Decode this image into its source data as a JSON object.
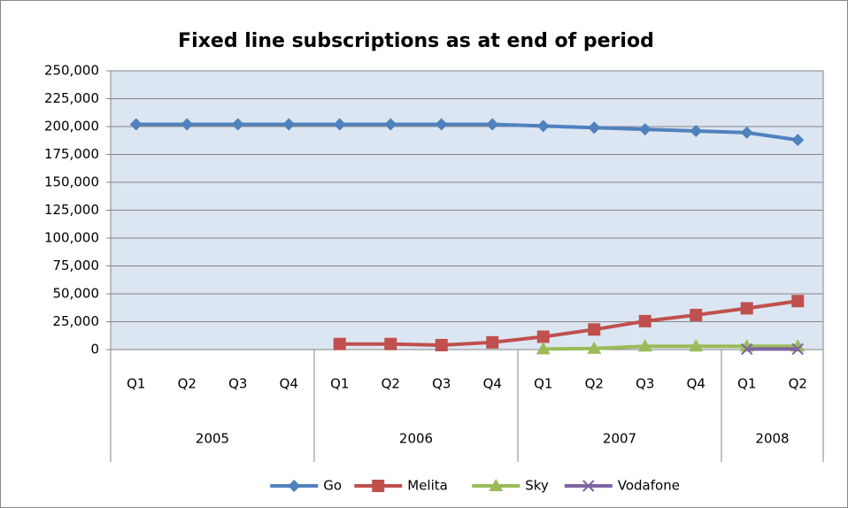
{
  "chart_data": {
    "type": "line",
    "title": "Fixed line subscriptions as at end of period",
    "category_groups": [
      {
        "label": "2005",
        "categories": [
          "Q1",
          "Q2",
          "Q3",
          "Q4"
        ]
      },
      {
        "label": "2006",
        "categories": [
          "Q1",
          "Q2",
          "Q3",
          "Q4"
        ]
      },
      {
        "label": "2007",
        "categories": [
          "Q1",
          "Q2",
          "Q3",
          "Q4"
        ]
      },
      {
        "label": "2008",
        "categories": [
          "Q1",
          "Q2"
        ]
      }
    ],
    "series": [
      {
        "name": "Go",
        "color": "#4f81bd",
        "marker": "diamond",
        "values": [
          202000,
          202000,
          202000,
          202000,
          202000,
          202000,
          202000,
          202000,
          200500,
          199000,
          197500,
          196000,
          194500,
          188000
        ]
      },
      {
        "name": "Melita",
        "color": "#c0504d",
        "marker": "square",
        "values": [
          null,
          null,
          null,
          null,
          5000,
          5000,
          4000,
          6500,
          11500,
          18000,
          25500,
          31000,
          37000,
          43500
        ]
      },
      {
        "name": "Sky",
        "color": "#9bbb59",
        "marker": "triangle",
        "values": [
          null,
          null,
          null,
          null,
          null,
          null,
          null,
          null,
          500,
          1000,
          3000,
          3000,
          3000,
          3000
        ]
      },
      {
        "name": "Vodafone",
        "color": "#8064a2",
        "marker": "x",
        "values": [
          null,
          null,
          null,
          null,
          null,
          null,
          null,
          null,
          null,
          null,
          null,
          null,
          500,
          500
        ]
      }
    ],
    "ylim": [
      0,
      250000
    ],
    "yticks": [
      0,
      {
        "value": 25000,
        "label": "25,000"
      },
      {
        "value": 50000,
        "label": "50,000"
      },
      {
        "value": 75000,
        "label": "75,000"
      },
      {
        "value": 100000,
        "label": "100,000"
      },
      {
        "value": 125000,
        "label": "125,000"
      },
      {
        "value": 150000,
        "label": "150,000"
      },
      {
        "value": 175000,
        "label": "175,000"
      },
      {
        "value": 200000,
        "label": "200,000"
      },
      {
        "value": 225000,
        "label": "225,000"
      },
      {
        "value": 250000,
        "label": "250,000"
      }
    ],
    "grid": true,
    "plot_background": "#dce6f2",
    "legend": "bottom"
  }
}
